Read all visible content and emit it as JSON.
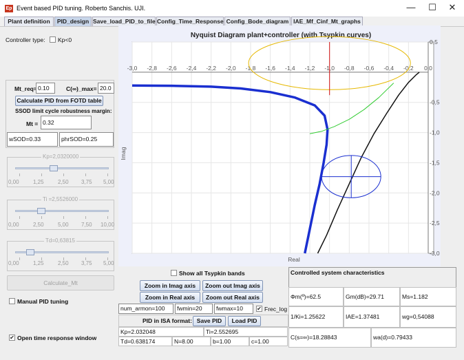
{
  "window": {
    "title": "Event based PID tuning. Roberto Sanchis. UJI.",
    "icon_text": "Ep",
    "minimize_glyph": "—",
    "maximize_glyph": "☐",
    "close_glyph": "✕"
  },
  "tabs": [
    {
      "label": "Plant definition"
    },
    {
      "label": "PID_design"
    },
    {
      "label": "Save_load_PID_to_file"
    },
    {
      "label": "Config_Time_Response"
    },
    {
      "label": "Config_Bode_diagram"
    },
    {
      "label": "IAE_Mf_Cinf_Mt_graphs"
    }
  ],
  "left": {
    "controller_type_label": "Controller type:",
    "kp_neg_label": "Kp<0",
    "mt_req_label": "Mt_req=",
    "mt_req_value": "0.10",
    "c_inf_max_label": "C(∞)_max=",
    "c_inf_max_value": "20.0",
    "calc_fotd_label": "Calculate PID from FOTD table",
    "ssod_label": "SSOD limit cycle robustness margin:",
    "mt_label": "Mt =",
    "mt_value": "0.32",
    "wsod_value": "wSOD=0.33",
    "phrsod_value": "phrSOD=0.25",
    "sliders": [
      {
        "title": "Kp=2,0320000",
        "ticks": [
          "0,00",
          "1,25",
          "2,50",
          "3,75",
          "5,00"
        ],
        "level": 0.406
      },
      {
        "title": "Ti =2,5526000",
        "ticks": [
          "0,00",
          "2,50",
          "5,00",
          "7,50",
          "10,00"
        ],
        "level": 0.255
      },
      {
        "title": "Td=0,63815",
        "ticks": [
          "0,00",
          "1,25",
          "2,50",
          "3,75",
          "5,00"
        ],
        "level": 0.128
      }
    ],
    "calculate_mt_label": "Calculate_Mt",
    "manual_pid_label": "Manual PID tuning",
    "open_time_response_label": "Open time response window",
    "check_glyph": "✔"
  },
  "bottom": {
    "show_tsypkin_label": "Show all Tsypkin bands",
    "zoom_in_imag": "Zoom in Imag axis",
    "zoom_out_imag": "Zoom out Imag axis",
    "zoom_in_real": "Zoom in Real axis",
    "zoom_out_real": "Zoom out Real axis",
    "num_armon": "num_armon=100",
    "fwmin": "fwmin=20",
    "fwmax": "fwmax=10",
    "frec_log": "Frec_log",
    "pid_isa_label": "PID in ISA format:",
    "save_pid": "Save PID",
    "load_pid": "Load PID",
    "kp": "Kp=2.032048",
    "ti": "Ti=2.552695",
    "td": "Td=0.638174",
    "n": "N=8.00",
    "b": "b=1.00",
    "c": "c=1.00"
  },
  "characteristics": {
    "title": "Controlled system characteristics",
    "phm": "Φm(º)=62.5",
    "gm": "Gm(dB)=29.71",
    "ms": "Ms=1.182",
    "one_ki": "1/Ki=1.25622",
    "iae": "IAE=1.37481",
    "wg": "wg=0,54088",
    "c_inf": "C(s=∞)=18.28843",
    "wa": "wa(d)=0.79433"
  },
  "chart_data": {
    "type": "line",
    "title": "Nyquist Diagram plant+controller (with Tsypkin curves)",
    "xlabel": "Real",
    "ylabel": "Imag",
    "xlim": [
      -3.0,
      0.0
    ],
    "ylim": [
      -3.0,
      0.5
    ],
    "x_ticks": [
      "-3,0",
      "-2,8",
      "-2,6",
      "-2,4",
      "-2,2",
      "-2,0",
      "-1,8",
      "-1,6",
      "-1,4",
      "-1,2",
      "-1,0",
      "-0,8",
      "-0,6",
      "-0,4",
      "-0,2",
      "0,0"
    ],
    "y_ticks": [
      "0,5",
      "-0,5",
      "-1,0",
      "-1,5",
      "-2,0",
      "-2,5",
      "-3,0"
    ],
    "series": [
      {
        "color": "#1a2fd0",
        "x": [
          -3.0,
          -2.6,
          -2.2,
          -1.9,
          -1.6,
          -1.35,
          -1.15,
          -1.05,
          -1.02,
          -1.03,
          -1.06,
          -1.1,
          -1.15,
          -1.2,
          -1.25
        ],
        "y": [
          -0.22,
          -0.225,
          -0.24,
          -0.27,
          -0.33,
          -0.42,
          -0.55,
          -0.72,
          -0.95,
          -1.2,
          -1.5,
          -1.85,
          -2.2,
          -2.6,
          -3.0
        ]
      },
      {
        "color": "#111111",
        "x": [
          -0.09,
          -0.12,
          -0.2,
          -0.3,
          -0.42,
          -0.55,
          -0.68,
          -0.8,
          -0.92,
          -1.03,
          -1.12
        ],
        "y": [
          0.0,
          -0.04,
          -0.17,
          -0.38,
          -0.68,
          -1.02,
          -1.42,
          -1.85,
          -2.28,
          -2.7,
          -3.0
        ]
      },
      {
        "color": "#33cc33",
        "x": [
          -0.35,
          -0.5,
          -0.65,
          -0.8,
          -0.95,
          -1.08,
          -1.2
        ],
        "y": [
          -0.18,
          -0.42,
          -0.62,
          -0.78,
          -0.9,
          -0.98,
          -1.02
        ]
      },
      {
        "color": "#e6b800",
        "shape": "ellipse",
        "x": [
          -1.0
        ],
        "y": [
          0.15
        ],
        "rx": 0.82,
        "ry": 0.44
      },
      {
        "color": "#d01010",
        "x": [
          -1.0,
          -1.0
        ],
        "y": [
          0.5,
          -0.38
        ]
      },
      {
        "color": "#1a2fd0",
        "shape": "ellipse-cross",
        "x": [
          -0.78
        ],
        "y": [
          -1.73
        ],
        "rx": 0.3,
        "ry": 0.35
      }
    ]
  }
}
